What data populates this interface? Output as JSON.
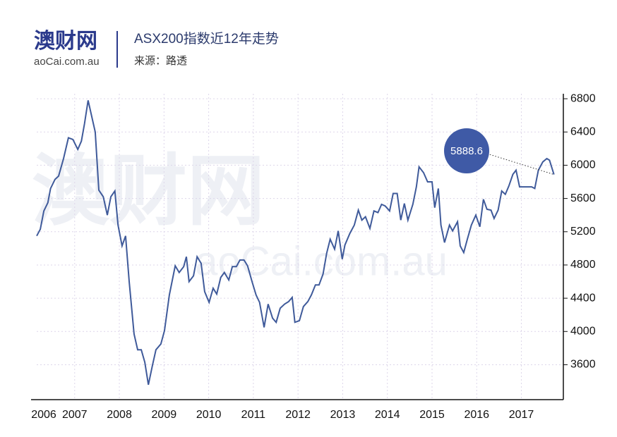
{
  "header": {
    "logo": "澳财网",
    "logo_sub": "aoCai.com.au",
    "watermark": "澳财网",
    "watermark_sub": "aoCai.com.au"
  },
  "chart_data": {
    "type": "line",
    "title": "ASX200指数近12年走势",
    "subtitle": "来源：路透",
    "annotation": "5888.6",
    "color": "#3f5a9a",
    "grid": true,
    "xlim": [
      2006.15,
      2017.75
    ],
    "xticks": [
      2006,
      2007,
      2008,
      2009,
      2010,
      2011,
      2012,
      2013,
      2014,
      2015,
      2016,
      2017
    ],
    "ylim": [
      3180,
      6860
    ],
    "yticks": [
      3600,
      4000,
      4400,
      4800,
      5200,
      5600,
      6000,
      6400,
      6800
    ],
    "series": [
      {
        "name": "ASX200",
        "color": "#3f5a9a",
        "x": [
          2006.15,
          2006.23,
          2006.31,
          2006.4,
          2006.46,
          2006.56,
          2006.64,
          2006.75,
          2006.86,
          2006.96,
          2007.07,
          2007.15,
          2007.22,
          2007.3,
          2007.46,
          2007.54,
          2007.64,
          2007.73,
          2007.81,
          2007.9,
          2007.97,
          2008.06,
          2008.14,
          2008.22,
          2008.33,
          2008.41,
          2008.49,
          2008.57,
          2008.65,
          2008.74,
          2008.82,
          2008.93,
          2009.01,
          2009.12,
          2009.25,
          2009.34,
          2009.44,
          2009.5,
          2009.56,
          2009.66,
          2009.74,
          2009.83,
          2009.91,
          2010.01,
          2010.1,
          2010.18,
          2010.27,
          2010.35,
          2010.45,
          2010.53,
          2010.62,
          2010.7,
          2010.79,
          2010.87,
          2010.97,
          2011.06,
          2011.14,
          2011.24,
          2011.33,
          2011.43,
          2011.51,
          2011.6,
          2011.7,
          2011.79,
          2011.87,
          2011.93,
          2012.03,
          2012.12,
          2012.22,
          2012.3,
          2012.39,
          2012.47,
          2012.56,
          2012.64,
          2012.72,
          2012.82,
          2012.9,
          2012.99,
          2013.05,
          2013.16,
          2013.26,
          2013.35,
          2013.43,
          2013.51,
          2013.61,
          2013.7,
          2013.79,
          2013.87,
          2013.95,
          2014.05,
          2014.13,
          2014.22,
          2014.3,
          2014.38,
          2014.46,
          2014.57,
          2014.65,
          2014.71,
          2014.81,
          2014.9,
          2015.0,
          2015.06,
          2015.14,
          2015.2,
          2015.28,
          2015.39,
          2015.46,
          2015.57,
          2015.63,
          2015.71,
          2015.79,
          2015.88,
          2015.98,
          2016.07,
          2016.15,
          2016.23,
          2016.32,
          2016.39,
          2016.48,
          2016.56,
          2016.64,
          2016.72,
          2016.81,
          2016.88,
          2016.96,
          2017.05,
          2017.15,
          2017.23,
          2017.3,
          2017.38,
          2017.48,
          2017.57,
          2017.63,
          2017.73
        ],
        "values": [
          5150,
          5230,
          5450,
          5550,
          5720,
          5830,
          5870,
          6080,
          6330,
          6310,
          6190,
          6290,
          6500,
          6780,
          6400,
          5700,
          5620,
          5400,
          5620,
          5690,
          5280,
          5030,
          5150,
          4600,
          3970,
          3780,
          3780,
          3630,
          3360,
          3590,
          3780,
          3850,
          4010,
          4440,
          4790,
          4710,
          4780,
          4900,
          4600,
          4670,
          4900,
          4820,
          4480,
          4350,
          4520,
          4450,
          4650,
          4710,
          4620,
          4780,
          4780,
          4860,
          4860,
          4790,
          4600,
          4440,
          4350,
          4050,
          4330,
          4160,
          4110,
          4280,
          4330,
          4360,
          4410,
          4110,
          4130,
          4300,
          4360,
          4440,
          4560,
          4560,
          4690,
          4940,
          5110,
          4990,
          5210,
          4870,
          5040,
          5180,
          5280,
          5460,
          5340,
          5380,
          5240,
          5450,
          5430,
          5530,
          5510,
          5450,
          5660,
          5660,
          5340,
          5540,
          5340,
          5530,
          5740,
          5980,
          5910,
          5800,
          5800,
          5490,
          5720,
          5280,
          5070,
          5280,
          5210,
          5320,
          5030,
          4950,
          5110,
          5280,
          5400,
          5260,
          5590,
          5470,
          5460,
          5360,
          5460,
          5690,
          5650,
          5750,
          5890,
          5940,
          5740,
          5740,
          5740,
          5740,
          5720,
          5940,
          6040,
          6080,
          6060,
          5888.6
        ]
      }
    ]
  }
}
